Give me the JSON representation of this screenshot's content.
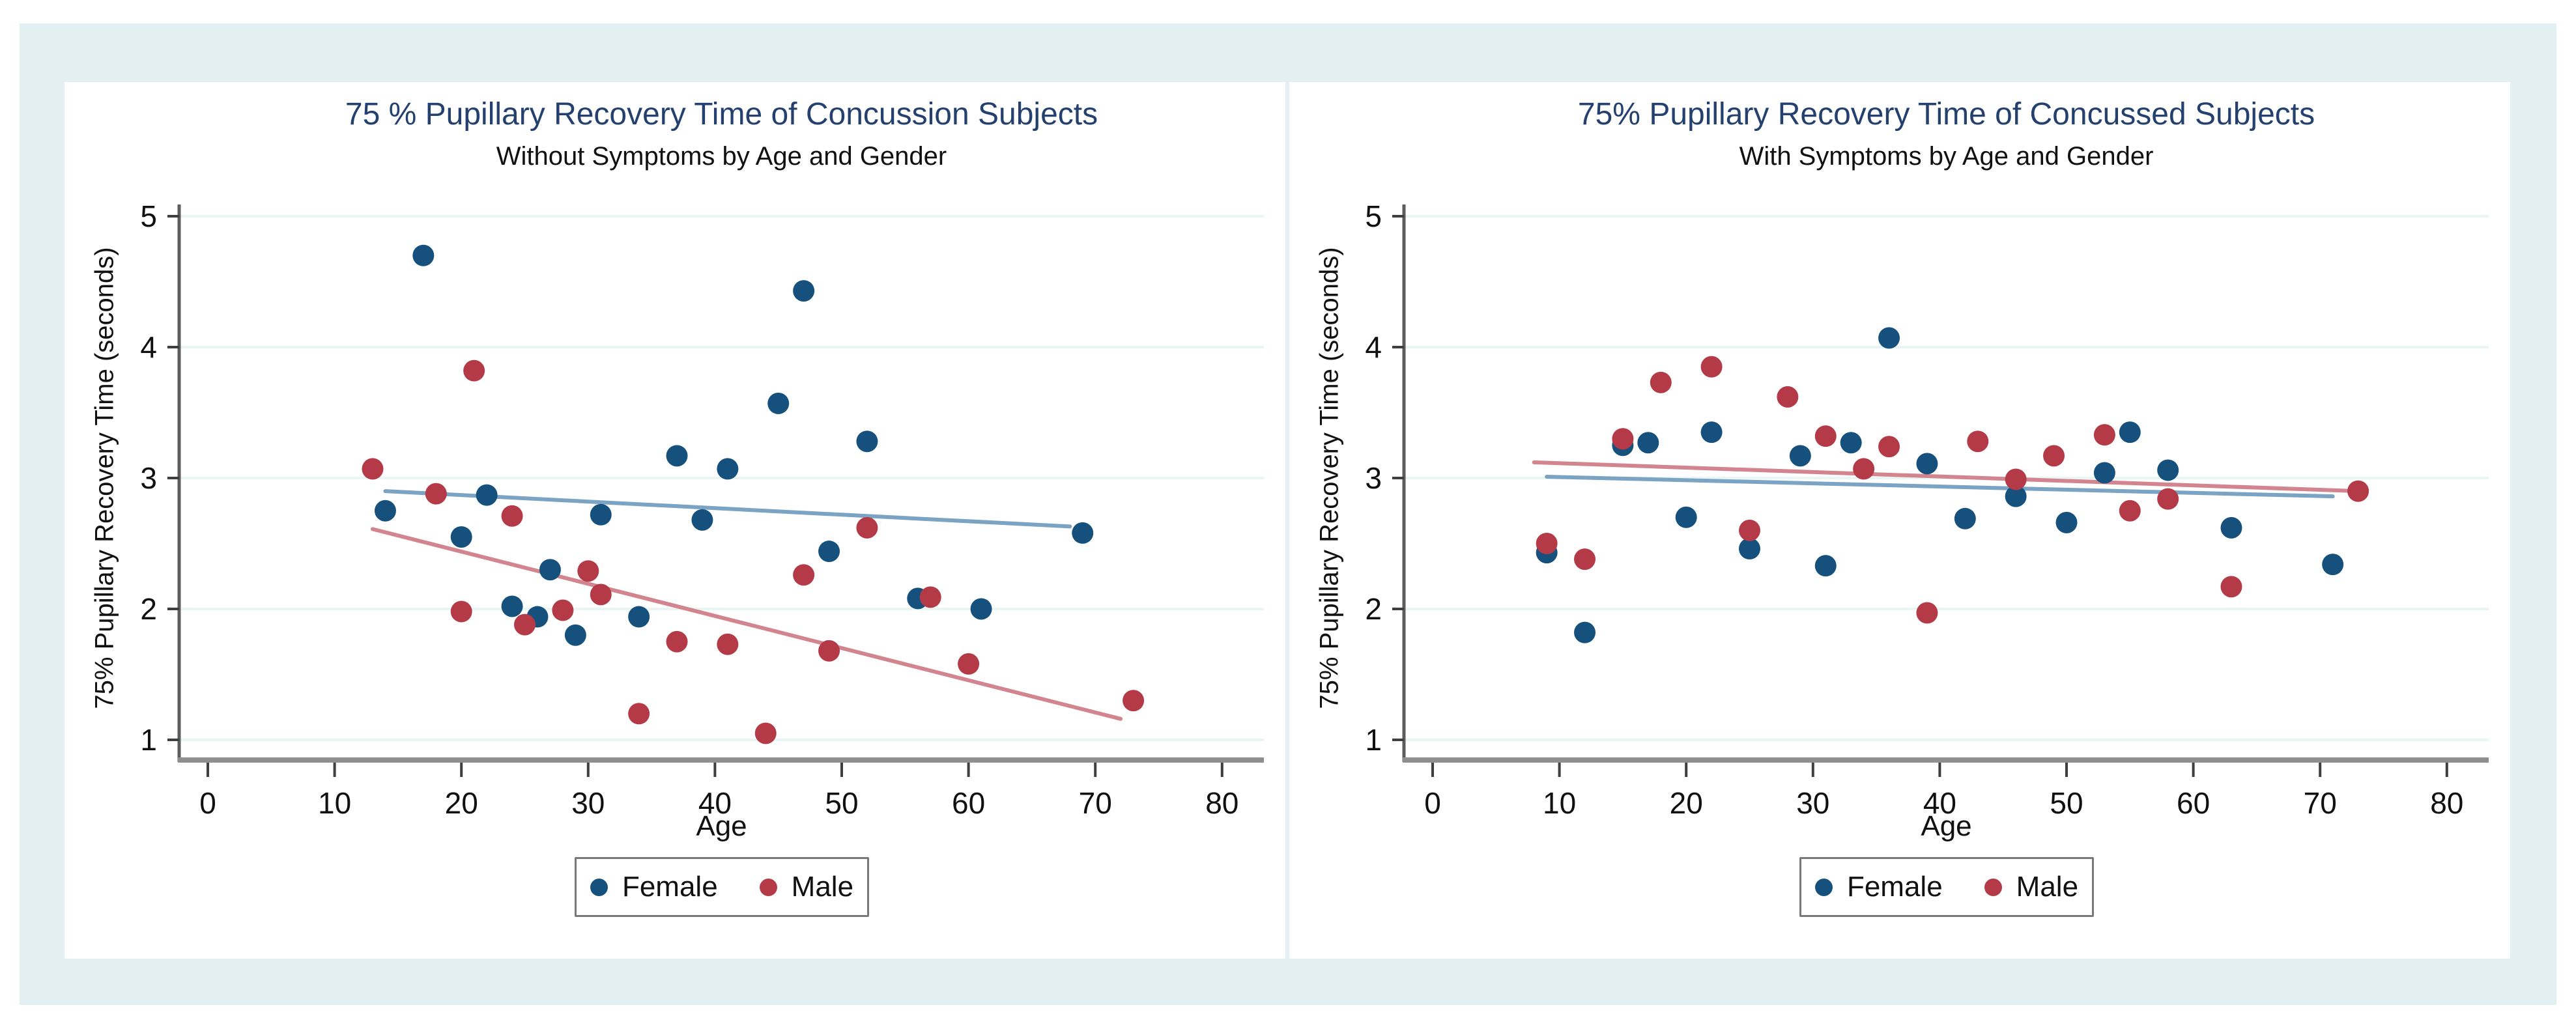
{
  "colors": {
    "page_background": "#ffffff",
    "frame_background": "#e2f0f1",
    "panel_background": "#ffffff",
    "gridline": "#e9f6f4",
    "axis_line": "#8f8f8f",
    "tick_mark": "#3f3f3f",
    "tick_label": "#101010",
    "title": "#24406f",
    "female_marker": "#16517d",
    "male_marker": "#b43a48",
    "female_trend": "#7aa3c4",
    "male_trend": "#d2848f"
  },
  "legend": {
    "female_label": "Female",
    "male_label": "Male"
  },
  "chart_data": [
    {
      "type": "scatter",
      "title": "75 % Pupillary Recovery Time of Concussion Subjects",
      "subtitle": "Without Symptoms by Age and Gender",
      "xlabel": "Age",
      "ylabel": "75% Pupillary Recovery Time (seconds)",
      "xlim": [
        0,
        80
      ],
      "ylim": [
        1,
        5
      ],
      "x_ticks": [
        0,
        10,
        20,
        30,
        40,
        50,
        60,
        70,
        80
      ],
      "y_ticks": [
        1,
        2,
        3,
        4,
        5
      ],
      "grid": true,
      "legend_position": "bottom",
      "series": [
        {
          "name": "Female",
          "points": [
            [
              17,
              4.7
            ],
            [
              47,
              4.43
            ],
            [
              45,
              3.57
            ],
            [
              52,
              3.28
            ],
            [
              37,
              3.17
            ],
            [
              41,
              3.07
            ],
            [
              22,
              2.87
            ],
            [
              14,
              2.75
            ],
            [
              31,
              2.72
            ],
            [
              39,
              2.68
            ],
            [
              69,
              2.58
            ],
            [
              20,
              2.55
            ],
            [
              49,
              2.44
            ],
            [
              27,
              2.3
            ],
            [
              56,
              2.08
            ],
            [
              24,
              2.02
            ],
            [
              61,
              2.0
            ],
            [
              26,
              1.94
            ],
            [
              34,
              1.94
            ],
            [
              29,
              1.8
            ]
          ]
        },
        {
          "name": "Male",
          "points": [
            [
              21,
              3.82
            ],
            [
              13,
              3.07
            ],
            [
              18,
              2.88
            ],
            [
              24,
              2.71
            ],
            [
              52,
              2.62
            ],
            [
              30,
              2.29
            ],
            [
              47,
              2.26
            ],
            [
              31,
              2.11
            ],
            [
              57,
              2.09
            ],
            [
              28,
              1.99
            ],
            [
              20,
              1.98
            ],
            [
              25,
              1.88
            ],
            [
              37,
              1.75
            ],
            [
              41,
              1.73
            ],
            [
              49,
              1.68
            ],
            [
              60,
              1.58
            ],
            [
              73,
              1.3
            ],
            [
              34,
              1.2
            ],
            [
              44,
              1.05
            ]
          ]
        }
      ],
      "trend_lines": [
        {
          "series": "Female",
          "from": [
            14,
            2.9
          ],
          "to": [
            68,
            2.63
          ]
        },
        {
          "series": "Male",
          "from": [
            13,
            2.61
          ],
          "to": [
            72,
            1.16
          ]
        }
      ]
    },
    {
      "type": "scatter",
      "title": "75% Pupillary Recovery Time of Concussed Subjects",
      "subtitle": "With Symptoms by Age and Gender",
      "xlabel": "Age",
      "ylabel": "75% Pupillary Recovery Time (seconds)",
      "xlim": [
        0,
        80
      ],
      "ylim": [
        1,
        5
      ],
      "x_ticks": [
        0,
        10,
        20,
        30,
        40,
        50,
        60,
        70,
        80
      ],
      "y_ticks": [
        1,
        2,
        3,
        4,
        5
      ],
      "grid": true,
      "legend_position": "bottom",
      "series": [
        {
          "name": "Female",
          "points": [
            [
              36,
              4.07
            ],
            [
              22,
              3.35
            ],
            [
              55,
              3.35
            ],
            [
              33,
              3.27
            ],
            [
              17,
              3.27
            ],
            [
              15,
              3.25
            ],
            [
              29,
              3.17
            ],
            [
              39,
              3.11
            ],
            [
              58,
              3.06
            ],
            [
              53,
              3.04
            ],
            [
              46,
              2.86
            ],
            [
              20,
              2.7
            ],
            [
              42,
              2.69
            ],
            [
              50,
              2.66
            ],
            [
              63,
              2.62
            ],
            [
              25,
              2.46
            ],
            [
              9,
              2.43
            ],
            [
              71,
              2.34
            ],
            [
              31,
              2.33
            ],
            [
              12,
              1.82
            ]
          ]
        },
        {
          "name": "Male",
          "points": [
            [
              22,
              3.85
            ],
            [
              18,
              3.73
            ],
            [
              28,
              3.62
            ],
            [
              53,
              3.33
            ],
            [
              31,
              3.32
            ],
            [
              15,
              3.3
            ],
            [
              43,
              3.28
            ],
            [
              36,
              3.24
            ],
            [
              49,
              3.17
            ],
            [
              34,
              3.07
            ],
            [
              46,
              2.99
            ],
            [
              73,
              2.9
            ],
            [
              58,
              2.84
            ],
            [
              55,
              2.75
            ],
            [
              25,
              2.6
            ],
            [
              9,
              2.5
            ],
            [
              12,
              2.38
            ],
            [
              63,
              2.17
            ],
            [
              39,
              1.97
            ]
          ]
        }
      ],
      "trend_lines": [
        {
          "series": "Female",
          "from": [
            9,
            3.01
          ],
          "to": [
            71,
            2.86
          ]
        },
        {
          "series": "Male",
          "from": [
            8,
            3.12
          ],
          "to": [
            73,
            2.9
          ]
        }
      ]
    }
  ]
}
